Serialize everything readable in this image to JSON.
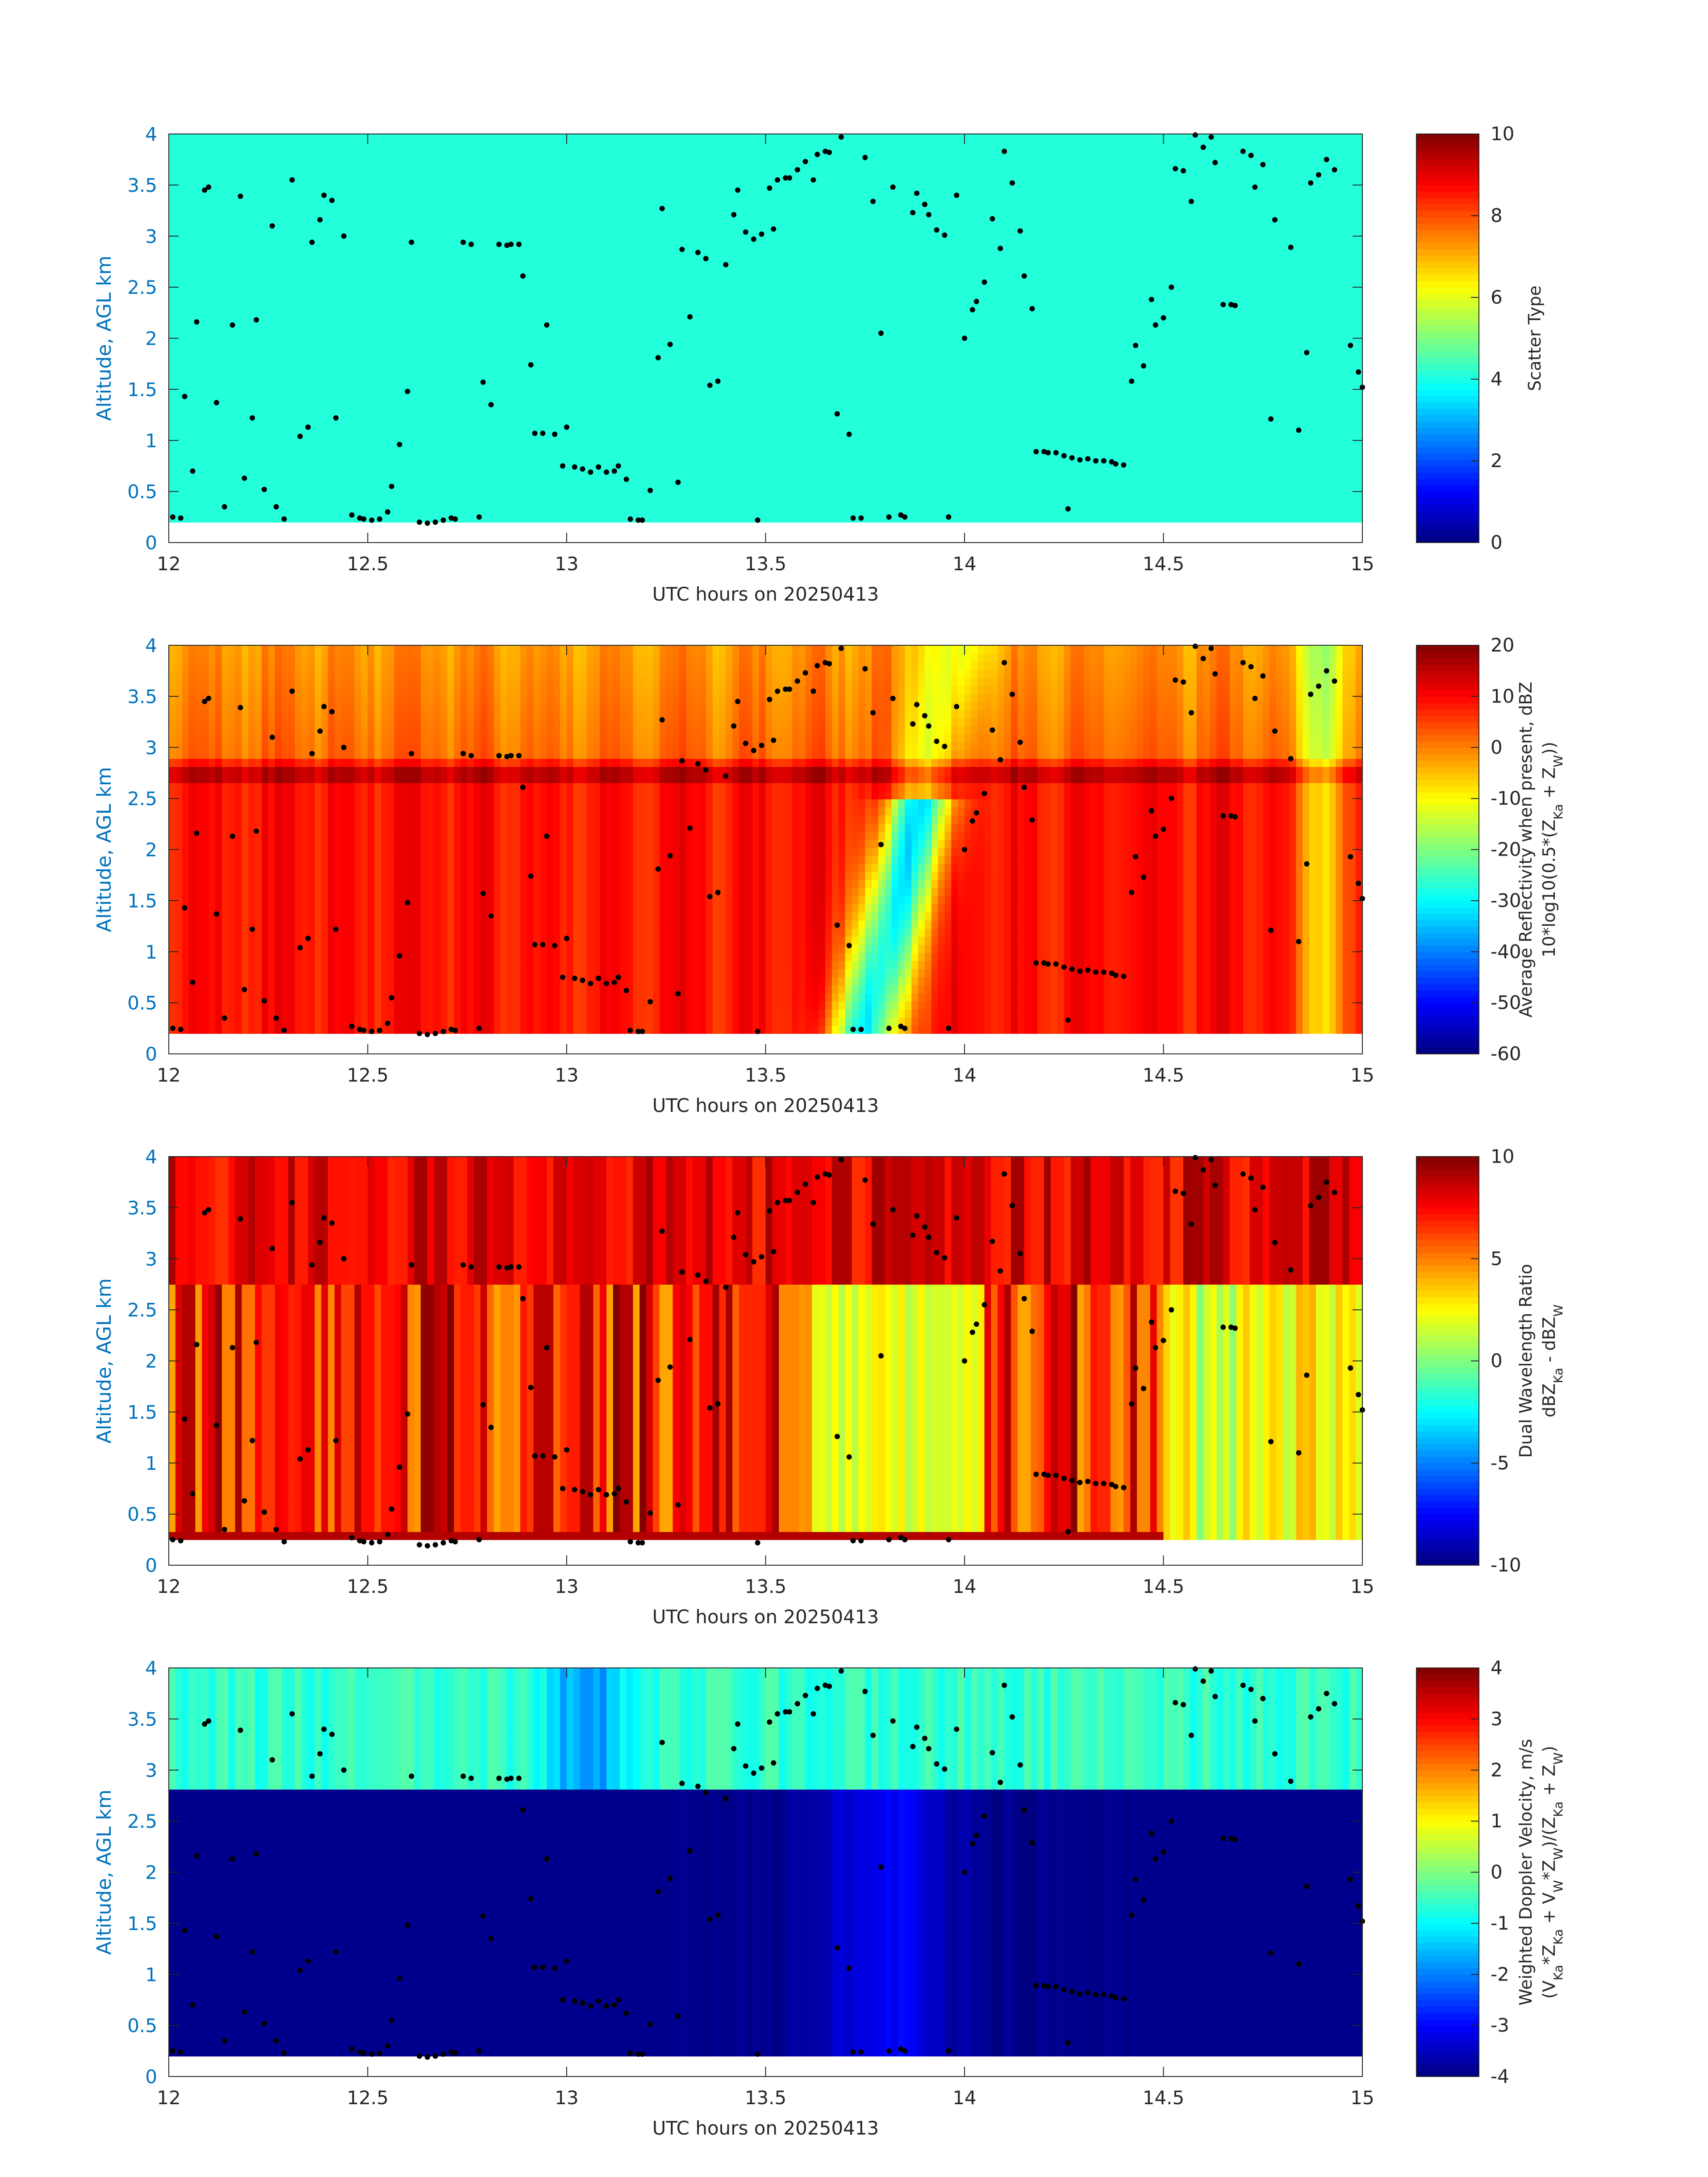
{
  "chart_data": [
    {
      "type": "heatmap",
      "field": "scatter_type",
      "xlabel": "UTC hours on 20250413",
      "ylabel": "Altitude, AGL km",
      "xlim": [
        12,
        15
      ],
      "ylim": [
        0,
        4
      ],
      "xticks": [
        "12",
        "12.5",
        "13",
        "13.5",
        "14",
        "14.5",
        "15"
      ],
      "yticks": [
        "0",
        "0.5",
        "1",
        "1.5",
        "2",
        "2.5",
        "3",
        "3.5",
        "4"
      ],
      "colorbar": {
        "label_lines": [
          "Scatter Type"
        ],
        "range": [
          0,
          10
        ],
        "ticks": [
          "0",
          "2",
          "4",
          "6",
          "8",
          "10"
        ]
      },
      "colormap": "jet",
      "data_bottom_km": 0.2,
      "uniform_value": 4.1
    },
    {
      "type": "heatmap",
      "field": "avg_reflectivity",
      "xlabel": "UTC hours on 20250413",
      "ylabel": "Altitude, AGL km",
      "xlim": [
        12,
        15
      ],
      "ylim": [
        0,
        4
      ],
      "xticks": [
        "12",
        "12.5",
        "13",
        "13.5",
        "14",
        "14.5",
        "15"
      ],
      "yticks": [
        "0",
        "0.5",
        "1",
        "1.5",
        "2",
        "2.5",
        "3",
        "3.5",
        "4"
      ],
      "colorbar": {
        "label_lines": [
          "Average Reflectivity when present, dBZ",
          "10*log10(0.5*(Z_Ka + Z_W))"
        ],
        "range": [
          -60,
          20
        ],
        "ticks": [
          "-60",
          "-50",
          "-40",
          "-30",
          "-20",
          "-10",
          "0",
          "10",
          "20"
        ]
      },
      "colormap": "jet",
      "data_bottom_km": 0.2,
      "melting_layer_km": 2.8,
      "typical_above_ml_dbz": 2,
      "typical_below_ml_dbz": 9,
      "min_dbz_near": {
        "time": 13.8,
        "value": -32
      }
    },
    {
      "type": "heatmap",
      "field": "dual_wavelength_ratio",
      "xlabel": "UTC hours on 20250413",
      "ylabel": "Altitude, AGL km",
      "xlim": [
        12,
        15
      ],
      "ylim": [
        0,
        4
      ],
      "xticks": [
        "12",
        "12.5",
        "13",
        "13.5",
        "14",
        "14.5",
        "15"
      ],
      "yticks": [
        "0",
        "0.5",
        "1",
        "1.5",
        "2",
        "2.5",
        "3",
        "3.5",
        "4"
      ],
      "colorbar": {
        "label_lines": [
          "Dual Wavelength Ratio",
          "dBZ_Ka - dBZ_W"
        ],
        "range": [
          -10,
          10
        ],
        "ticks": [
          "-10",
          "-5",
          "0",
          "5",
          "10"
        ]
      },
      "colormap": "jet",
      "data_bottom_km": 0.25,
      "melting_layer_km": 2.75,
      "typical_below_ml_dwr": 5,
      "low_dwr_period": [
        13.62,
        14.05
      ]
    },
    {
      "type": "heatmap",
      "field": "weighted_doppler_velocity",
      "xlabel": "UTC hours on 20250413",
      "ylabel": "Altitude, AGL km",
      "xlim": [
        12,
        15
      ],
      "ylim": [
        0,
        4
      ],
      "xticks": [
        "12",
        "12.5",
        "13",
        "13.5",
        "14",
        "14.5",
        "15"
      ],
      "yticks": [
        "0",
        "0.5",
        "1",
        "1.5",
        "2",
        "2.5",
        "3",
        "3.5",
        "4"
      ],
      "colorbar": {
        "label_lines": [
          "Weighted Doppler Velocity, m/s",
          "(V_Ka*Z_Ka + V_W*Z_W)/(Z_Ka + Z_W)"
        ],
        "range": [
          -4,
          4
        ],
        "ticks": [
          "-4",
          "-3",
          "-2",
          "-1",
          "0",
          "1",
          "2",
          "3",
          "4"
        ]
      },
      "colormap": "jet",
      "data_bottom_km": 0.2,
      "melting_layer_km": 2.78,
      "typical_above_ml_ms": -0.6,
      "typical_below_ml_ms": -3.9
    }
  ],
  "overlay_points": [
    [
      12.01,
      0.25
    ],
    [
      12.03,
      0.24
    ],
    [
      12.04,
      1.43
    ],
    [
      12.06,
      0.7
    ],
    [
      12.07,
      2.16
    ],
    [
      12.09,
      3.45
    ],
    [
      12.1,
      3.48
    ],
    [
      12.12,
      1.37
    ],
    [
      12.14,
      0.35
    ],
    [
      12.16,
      2.13
    ],
    [
      12.18,
      3.39
    ],
    [
      12.19,
      0.63
    ],
    [
      12.21,
      1.22
    ],
    [
      12.22,
      2.18
    ],
    [
      12.24,
      0.52
    ],
    [
      12.26,
      3.1
    ],
    [
      12.27,
      0.35
    ],
    [
      12.29,
      0.23
    ],
    [
      12.31,
      3.55
    ],
    [
      12.33,
      1.04
    ],
    [
      12.35,
      1.13
    ],
    [
      12.36,
      2.94
    ],
    [
      12.38,
      3.16
    ],
    [
      12.39,
      3.4
    ],
    [
      12.41,
      3.35
    ],
    [
      12.42,
      1.22
    ],
    [
      12.44,
      3.0
    ],
    [
      12.46,
      0.27
    ],
    [
      12.48,
      0.24
    ],
    [
      12.49,
      0.23
    ],
    [
      12.51,
      0.22
    ],
    [
      12.53,
      0.23
    ],
    [
      12.55,
      0.3
    ],
    [
      12.56,
      0.55
    ],
    [
      12.58,
      0.96
    ],
    [
      12.6,
      1.48
    ],
    [
      12.61,
      2.94
    ],
    [
      12.63,
      0.2
    ],
    [
      12.65,
      0.19
    ],
    [
      12.67,
      0.2
    ],
    [
      12.69,
      0.22
    ],
    [
      12.71,
      0.24
    ],
    [
      12.72,
      0.23
    ],
    [
      12.74,
      2.94
    ],
    [
      12.76,
      2.92
    ],
    [
      12.78,
      0.25
    ],
    [
      12.79,
      1.57
    ],
    [
      12.81,
      1.35
    ],
    [
      12.83,
      2.92
    ],
    [
      12.85,
      2.91
    ],
    [
      12.86,
      2.92
    ],
    [
      12.88,
      2.92
    ],
    [
      12.89,
      2.61
    ],
    [
      12.91,
      1.74
    ],
    [
      12.92,
      1.07
    ],
    [
      12.94,
      1.07
    ],
    [
      12.95,
      2.13
    ],
    [
      12.97,
      1.06
    ],
    [
      12.99,
      0.75
    ],
    [
      13.0,
      1.13
    ],
    [
      13.02,
      0.74
    ],
    [
      13.04,
      0.72
    ],
    [
      13.06,
      0.69
    ],
    [
      13.08,
      0.74
    ],
    [
      13.1,
      0.69
    ],
    [
      13.12,
      0.7
    ],
    [
      13.13,
      0.75
    ],
    [
      13.15,
      0.62
    ],
    [
      13.16,
      0.23
    ],
    [
      13.18,
      0.22
    ],
    [
      13.19,
      0.22
    ],
    [
      13.21,
      0.51
    ],
    [
      13.23,
      1.81
    ],
    [
      13.24,
      3.27
    ],
    [
      13.26,
      1.94
    ],
    [
      13.28,
      0.59
    ],
    [
      13.29,
      2.87
    ],
    [
      13.31,
      2.21
    ],
    [
      13.33,
      2.84
    ],
    [
      13.35,
      2.78
    ],
    [
      13.36,
      1.54
    ],
    [
      13.38,
      1.58
    ],
    [
      13.4,
      2.72
    ],
    [
      13.42,
      3.21
    ],
    [
      13.43,
      3.45
    ],
    [
      13.45,
      3.04
    ],
    [
      13.47,
      2.97
    ],
    [
      13.48,
      0.22
    ],
    [
      13.49,
      3.02
    ],
    [
      13.51,
      3.47
    ],
    [
      13.52,
      3.07
    ],
    [
      13.53,
      3.55
    ],
    [
      13.55,
      3.57
    ],
    [
      13.56,
      3.57
    ],
    [
      13.58,
      3.65
    ],
    [
      13.6,
      3.73
    ],
    [
      13.62,
      3.55
    ],
    [
      13.63,
      3.8
    ],
    [
      13.65,
      3.83
    ],
    [
      13.66,
      3.82
    ],
    [
      13.68,
      1.26
    ],
    [
      13.69,
      3.97
    ],
    [
      13.71,
      1.06
    ],
    [
      13.72,
      0.24
    ],
    [
      13.74,
      0.24
    ],
    [
      13.75,
      3.77
    ],
    [
      13.77,
      3.34
    ],
    [
      13.79,
      2.05
    ],
    [
      13.81,
      0.25
    ],
    [
      13.82,
      3.48
    ],
    [
      13.84,
      0.27
    ],
    [
      13.85,
      0.25
    ],
    [
      13.87,
      3.23
    ],
    [
      13.88,
      3.42
    ],
    [
      13.9,
      3.31
    ],
    [
      13.91,
      3.21
    ],
    [
      13.93,
      3.06
    ],
    [
      13.95,
      3.01
    ],
    [
      13.96,
      0.25
    ],
    [
      13.98,
      3.4
    ],
    [
      14.0,
      2.0
    ],
    [
      14.02,
      2.28
    ],
    [
      14.03,
      2.36
    ],
    [
      14.05,
      2.55
    ],
    [
      14.07,
      3.17
    ],
    [
      14.09,
      2.88
    ],
    [
      14.1,
      3.83
    ],
    [
      14.12,
      3.52
    ],
    [
      14.14,
      3.05
    ],
    [
      14.15,
      2.61
    ],
    [
      14.17,
      2.29
    ],
    [
      14.18,
      0.89
    ],
    [
      14.2,
      0.89
    ],
    [
      14.21,
      0.88
    ],
    [
      14.23,
      0.88
    ],
    [
      14.25,
      0.85
    ],
    [
      14.26,
      0.33
    ],
    [
      14.27,
      0.83
    ],
    [
      14.29,
      0.81
    ],
    [
      14.31,
      0.82
    ],
    [
      14.33,
      0.8
    ],
    [
      14.35,
      0.8
    ],
    [
      14.37,
      0.79
    ],
    [
      14.38,
      0.77
    ],
    [
      14.4,
      0.76
    ],
    [
      14.42,
      1.58
    ],
    [
      14.43,
      1.93
    ],
    [
      14.45,
      1.73
    ],
    [
      14.47,
      2.38
    ],
    [
      14.48,
      2.13
    ],
    [
      14.5,
      2.2
    ],
    [
      14.52,
      2.5
    ],
    [
      14.53,
      3.66
    ],
    [
      14.55,
      3.64
    ],
    [
      14.57,
      3.34
    ],
    [
      14.58,
      3.99
    ],
    [
      14.6,
      3.87
    ],
    [
      14.62,
      3.97
    ],
    [
      14.63,
      3.72
    ],
    [
      14.65,
      2.33
    ],
    [
      14.67,
      2.33
    ],
    [
      14.68,
      2.32
    ],
    [
      14.7,
      3.83
    ],
    [
      14.72,
      3.79
    ],
    [
      14.73,
      3.48
    ],
    [
      14.75,
      3.7
    ],
    [
      14.77,
      1.21
    ],
    [
      14.78,
      3.16
    ],
    [
      14.82,
      2.89
    ],
    [
      14.84,
      1.1
    ],
    [
      14.86,
      1.86
    ],
    [
      14.87,
      3.52
    ],
    [
      14.89,
      3.6
    ],
    [
      14.91,
      3.75
    ],
    [
      14.93,
      3.65
    ],
    [
      14.97,
      1.93
    ],
    [
      14.99,
      1.67
    ],
    [
      15.0,
      1.52
    ]
  ]
}
